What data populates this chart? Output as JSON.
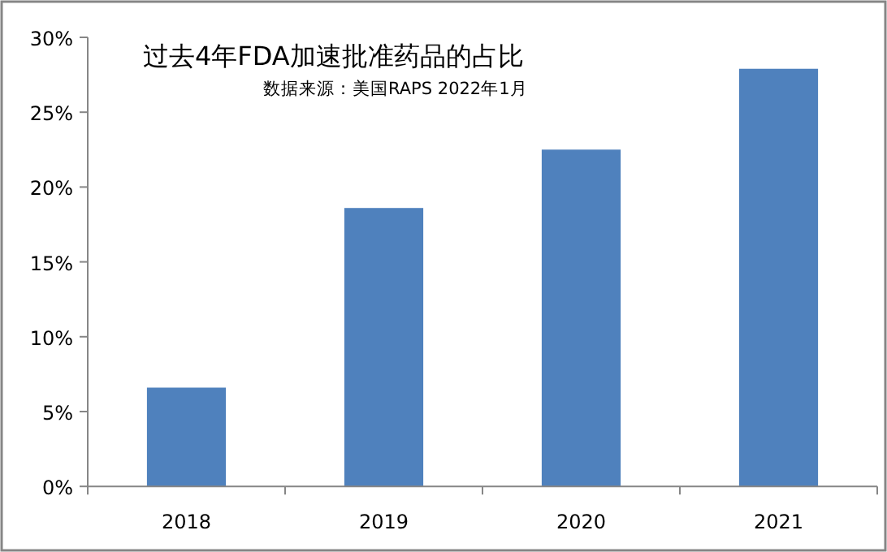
{
  "chart_data": {
    "type": "bar",
    "title": "过去4年FDA加速批准药品的占比",
    "annotations": [
      "数据来源：美国RAPS 2022年1月"
    ],
    "categories": [
      "2018",
      "2019",
      "2020",
      "2021"
    ],
    "values": [
      6.6,
      18.6,
      22.5,
      27.9
    ],
    "color": "#4f81bd",
    "ylim": [
      0,
      30
    ],
    "yticks": [
      {
        "value": 0,
        "label": "0%"
      },
      {
        "value": 5,
        "label": "5%"
      },
      {
        "value": 10,
        "label": "10%"
      },
      {
        "value": 15,
        "label": "15%"
      },
      {
        "value": 20,
        "label": "20%"
      },
      {
        "value": 25,
        "label": "25%"
      },
      {
        "value": 30,
        "label": "30%"
      }
    ],
    "grid": false
  }
}
